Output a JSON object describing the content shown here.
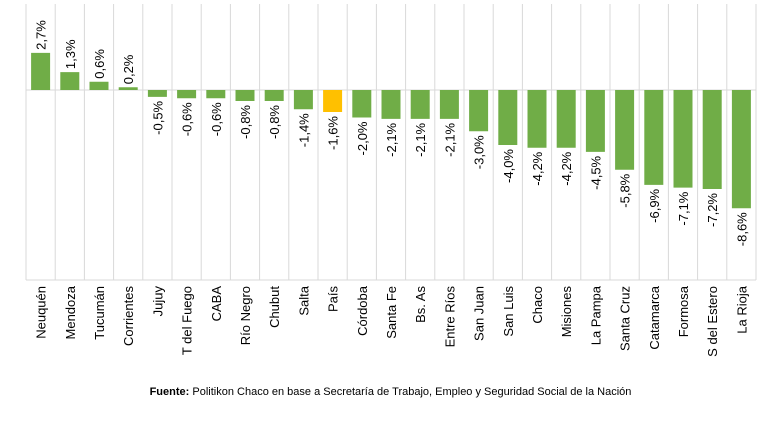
{
  "chart_data": {
    "type": "bar",
    "categories": [
      "Neuquén",
      "Mendoza",
      "Tucumán",
      "Corrientes",
      "Jujuy",
      "T del Fuego",
      "CABA",
      "Río Negro",
      "Chubut",
      "Salta",
      "País",
      "Córdoba",
      "Santa Fe",
      "Bs. As",
      "Entre Ríos",
      "San Juan",
      "San Luis",
      "Chaco",
      "Misiones",
      "La Pampa",
      "Santa Cruz",
      "Catamarca",
      "Formosa",
      "S del Estero",
      "La Rioja"
    ],
    "values": [
      2.7,
      1.3,
      0.6,
      0.2,
      -0.5,
      -0.6,
      -0.6,
      -0.8,
      -0.8,
      -1.4,
      -1.6,
      -2.0,
      -2.1,
      -2.1,
      -2.1,
      -3.0,
      -4.0,
      -4.2,
      -4.2,
      -4.5,
      -5.8,
      -6.9,
      -7.1,
      -7.2,
      -8.6
    ],
    "data_labels": [
      "2,7%",
      "1,3%",
      "0,6%",
      "0,2%",
      "-0,5%",
      "-0,6%",
      "-0,6%",
      "-0,8%",
      "-0,8%",
      "-1,4%",
      "-1,6%",
      "-2,0%",
      "-2,1%",
      "-2,1%",
      "-2,1%",
      "-3,0%",
      "-4,0%",
      "-4,2%",
      "-4,2%",
      "-4,5%",
      "-5,8%",
      "-6,9%",
      "-7,1%",
      "-7,2%",
      "-8,6%"
    ],
    "highlight_category": "País",
    "colors": {
      "bar": "#70ad47",
      "highlight": "#ffc000",
      "grid": "#d9d9d9",
      "text": "#000000"
    },
    "ylim": [
      -10,
      4
    ],
    "grid": true,
    "legend": "none"
  },
  "source": {
    "label": "Fuente:",
    "text": "Politikon Chaco en base a Secretaría de Trabajo, Empleo y Seguridad Social de la Nación"
  }
}
